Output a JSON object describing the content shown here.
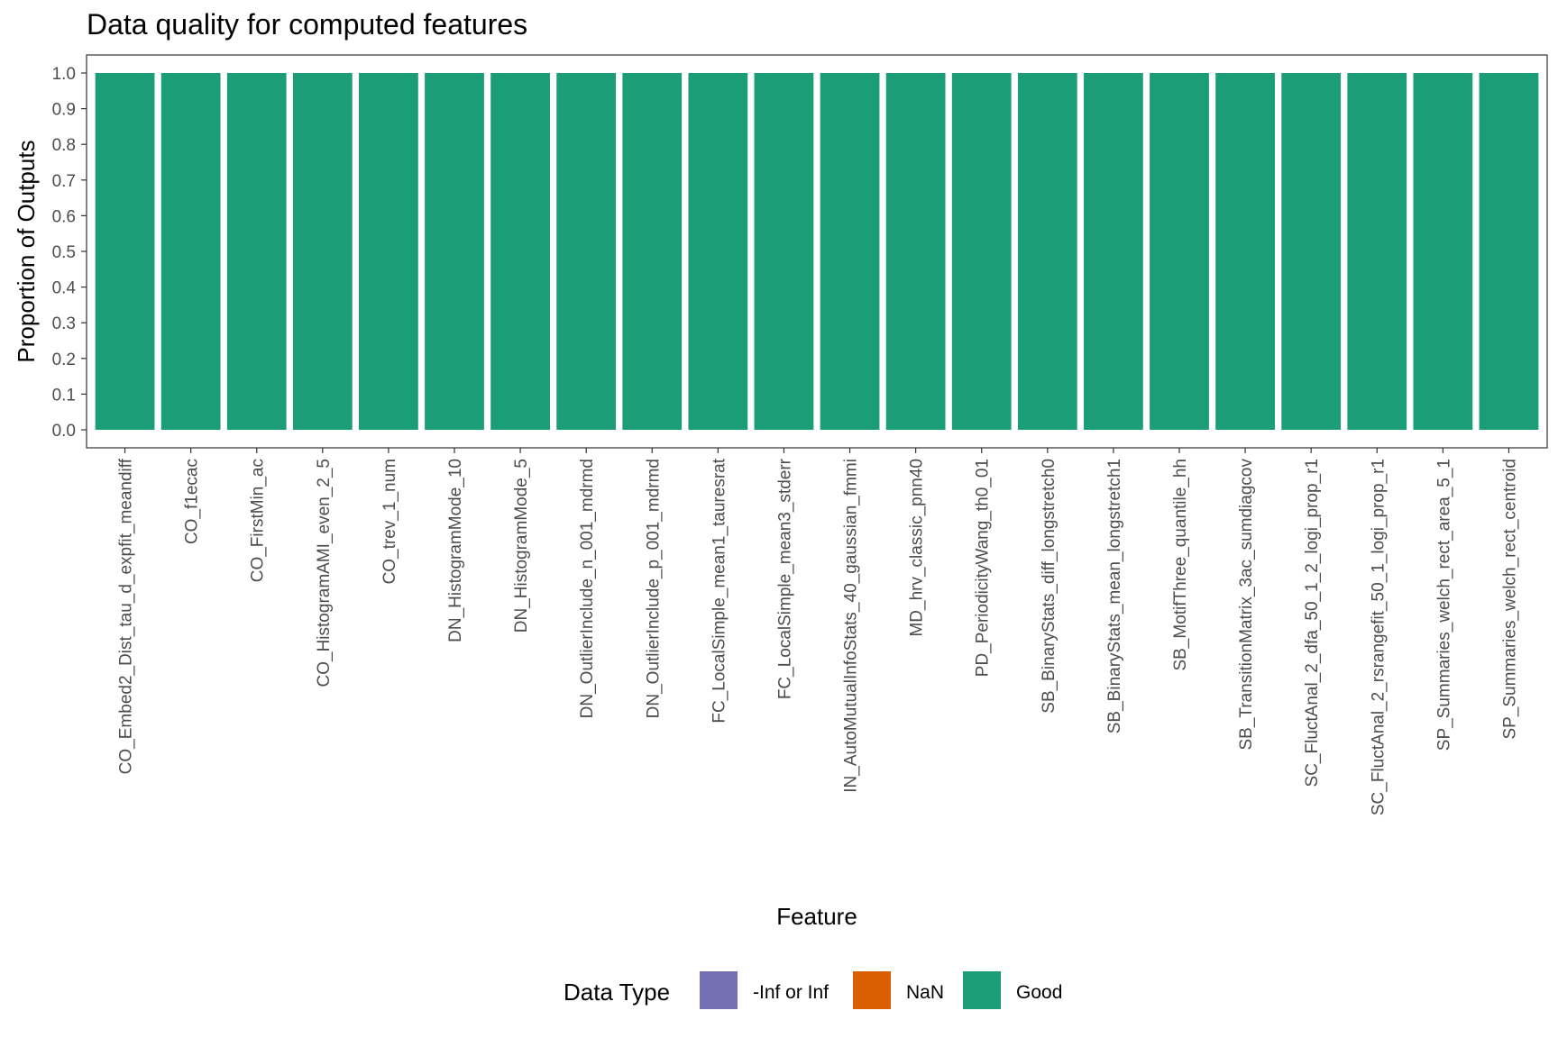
{
  "chart_data": {
    "type": "bar",
    "title": "Data quality for computed features",
    "xlabel": "Feature",
    "ylabel": "Proportion of Outputs",
    "ylim": [
      0,
      1
    ],
    "y_ticks": [
      "0.0",
      "0.1",
      "0.2",
      "0.3",
      "0.4",
      "0.5",
      "0.6",
      "0.7",
      "0.8",
      "0.9",
      "1.0"
    ],
    "grid": false,
    "stacked": true,
    "categories": [
      "CO_Embed2_Dist_tau_d_expfit_meandiff",
      "CO_f1ecac",
      "CO_FirstMin_ac",
      "CO_HistogramAMI_even_2_5",
      "CO_trev_1_num",
      "DN_HistogramMode_10",
      "DN_HistogramMode_5",
      "DN_OutlierInclude_n_001_mdrmd",
      "DN_OutlierInclude_p_001_mdrmd",
      "FC_LocalSimple_mean1_tauresrat",
      "FC_LocalSimple_mean3_stderr",
      "IN_AutoMutualInfoStats_40_gaussian_fmmi",
      "MD_hrv_classic_pnn40",
      "PD_PeriodicityWang_th0_01",
      "SB_BinaryStats_diff_longstretch0",
      "SB_BinaryStats_mean_longstretch1",
      "SB_MotifThree_quantile_hh",
      "SB_TransitionMatrix_3ac_sumdiagcov",
      "SC_FluctAnal_2_dfa_50_1_2_logi_prop_r1",
      "SC_FluctAnal_2_rsrangefit_50_1_logi_prop_r1",
      "SP_Summaries_welch_rect_area_5_1",
      "SP_Summaries_welch_rect_centroid"
    ],
    "series": [
      {
        "name": "-Inf or Inf",
        "color": "#7570B3",
        "values": [
          0,
          0,
          0,
          0,
          0,
          0,
          0,
          0,
          0,
          0,
          0,
          0,
          0,
          0,
          0,
          0,
          0,
          0,
          0,
          0,
          0,
          0
        ]
      },
      {
        "name": "NaN",
        "color": "#D95F02",
        "values": [
          0,
          0,
          0,
          0,
          0,
          0,
          0,
          0,
          0,
          0,
          0,
          0,
          0,
          0,
          0,
          0,
          0,
          0,
          0,
          0,
          0,
          0
        ]
      },
      {
        "name": "Good",
        "color": "#1B9E77",
        "values": [
          1,
          1,
          1,
          1,
          1,
          1,
          1,
          1,
          1,
          1,
          1,
          1,
          1,
          1,
          1,
          1,
          1,
          1,
          1,
          1,
          1,
          1
        ]
      }
    ],
    "legend": {
      "title": "Data Type",
      "position": "bottom"
    }
  }
}
